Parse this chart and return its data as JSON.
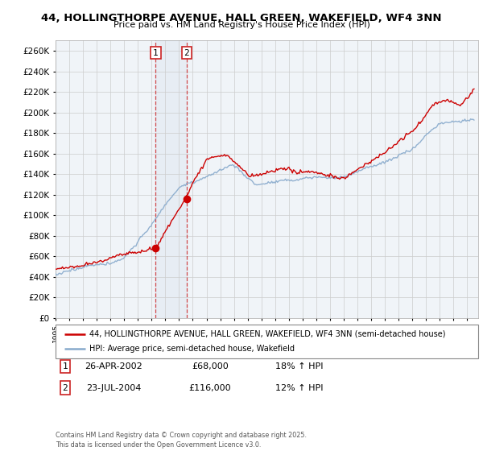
{
  "title": "44, HOLLINGTHORPE AVENUE, HALL GREEN, WAKEFIELD, WF4 3NN",
  "subtitle": "Price paid vs. HM Land Registry's House Price Index (HPI)",
  "legend_property": "44, HOLLINGTHORPE AVENUE, HALL GREEN, WAKEFIELD, WF4 3NN (semi-detached house)",
  "legend_hpi": "HPI: Average price, semi-detached house, Wakefield",
  "transaction1_date": "26-APR-2002",
  "transaction1_price": "£68,000",
  "transaction1_hpi": "18% ↑ HPI",
  "transaction2_date": "23-JUL-2004",
  "transaction2_price": "£116,000",
  "transaction2_hpi": "12% ↑ HPI",
  "footer": "Contains HM Land Registry data © Crown copyright and database right 2025.\nThis data is licensed under the Open Government Licence v3.0.",
  "property_color": "#cc0000",
  "hpi_color": "#88aacc",
  "grid_color": "#cccccc",
  "background_color": "#ffffff",
  "plot_bg_color": "#f0f4f8",
  "ylim": [
    0,
    270000
  ],
  "yticks": [
    0,
    20000,
    40000,
    60000,
    80000,
    100000,
    120000,
    140000,
    160000,
    180000,
    200000,
    220000,
    240000,
    260000
  ],
  "t1_year": 2002.3,
  "t2_year": 2004.55,
  "t1_price": 68000,
  "t2_price": 116000
}
